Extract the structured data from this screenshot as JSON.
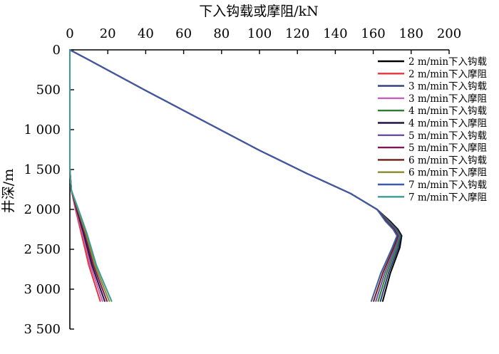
{
  "chart_data": {
    "type": "line",
    "title": "",
    "xlabel": "下入钩载或摩阻/kN",
    "ylabel": "井深/m",
    "x_axis_position": "top",
    "y_axis_inverted": true,
    "xlim": [
      0,
      200
    ],
    "ylim": [
      0,
      3500
    ],
    "x_ticks": [
      0,
      20,
      40,
      60,
      80,
      100,
      120,
      140,
      160,
      180,
      200
    ],
    "y_ticks": [
      0,
      500,
      1000,
      1500,
      2000,
      2500,
      3000,
      3500
    ],
    "x_tick_labels": [
      "0",
      "20",
      "40",
      "60",
      "80",
      "100",
      "120",
      "140",
      "160",
      "180",
      "200"
    ],
    "y_tick_labels": [
      "0",
      "500",
      "1 000",
      "1 500",
      "2 000",
      "2 500",
      "3 000",
      "3 500"
    ],
    "grid": false,
    "legend_position": "right",
    "series": [
      {
        "name": "2 m/min下入钩载",
        "color": "#000000",
        "x": [
          0,
          8,
          40,
          80,
          100,
          125,
          148,
          162,
          169,
          173,
          175,
          174,
          169,
          165
        ],
        "y": [
          0,
          100,
          510,
          1010,
          1260,
          1550,
          1800,
          2000,
          2150,
          2250,
          2330,
          2480,
          2800,
          3150
        ]
      },
      {
        "name": "2 m/min下入摩阻",
        "color": "#e8333a",
        "x": [
          0,
          0,
          0.8,
          3,
          6,
          10,
          16
        ],
        "y": [
          0,
          1500,
          1760,
          2000,
          2300,
          2700,
          3150
        ]
      },
      {
        "name": "3 m/min下入钩载",
        "color": "#2b3a78",
        "x": [
          0,
          8,
          40,
          80,
          100,
          125,
          148,
          162,
          168.5,
          172.5,
          174.5,
          173.2,
          168,
          163.8
        ],
        "y": [
          0,
          100,
          510,
          1010,
          1260,
          1550,
          1800,
          2000,
          2150,
          2250,
          2330,
          2480,
          2800,
          3150
        ]
      },
      {
        "name": "3 m/min下入摩阻",
        "color": "#c45fb3",
        "x": [
          0,
          0,
          0.8,
          3.3,
          6.6,
          10.8,
          17.2
        ],
        "y": [
          0,
          1500,
          1760,
          2000,
          2300,
          2700,
          3150
        ]
      },
      {
        "name": "4 m/min下入钩载",
        "color": "#2e7d32",
        "x": [
          0,
          8,
          40,
          80,
          100,
          125,
          148,
          162,
          168,
          172,
          174,
          172.4,
          167,
          162.6
        ],
        "y": [
          0,
          100,
          510,
          1010,
          1260,
          1550,
          1800,
          2000,
          2150,
          2250,
          2330,
          2480,
          2800,
          3150
        ]
      },
      {
        "name": "4 m/min下入摩阻",
        "color": "#1f1440",
        "x": [
          0,
          0,
          0.8,
          3.6,
          7.2,
          11.6,
          18.4
        ],
        "y": [
          0,
          1500,
          1760,
          2000,
          2300,
          2700,
          3150
        ]
      },
      {
        "name": "5 m/min下入钩载",
        "color": "#6a4fa8",
        "x": [
          0,
          8,
          40,
          80,
          100,
          125,
          148,
          162,
          167.5,
          171.5,
          173.5,
          171.6,
          166,
          161.4
        ],
        "y": [
          0,
          100,
          510,
          1010,
          1260,
          1550,
          1800,
          2000,
          2150,
          2250,
          2330,
          2480,
          2800,
          3150
        ]
      },
      {
        "name": "5 m/min下入摩阻",
        "color": "#7a1650",
        "x": [
          0,
          0,
          0.8,
          3.9,
          7.8,
          12.4,
          19.6
        ],
        "y": [
          0,
          1500,
          1760,
          2000,
          2300,
          2700,
          3150
        ]
      },
      {
        "name": "6 m/min下入钩载",
        "color": "#6b1f14",
        "x": [
          0,
          8,
          40,
          80,
          100,
          125,
          148,
          162,
          167,
          171,
          173,
          170.8,
          165,
          160.2
        ],
        "y": [
          0,
          100,
          510,
          1010,
          1260,
          1550,
          1800,
          2000,
          2150,
          2250,
          2330,
          2480,
          2800,
          3150
        ]
      },
      {
        "name": "6 m/min下入摩阻",
        "color": "#8a8a2a",
        "x": [
          0,
          0,
          0.8,
          4.2,
          8.4,
          13.2,
          20.8
        ],
        "y": [
          0,
          1500,
          1760,
          2000,
          2300,
          2700,
          3150
        ]
      },
      {
        "name": "7 m/min下入钩载",
        "color": "#3d5aa8",
        "x": [
          0,
          8,
          40,
          80,
          100,
          125,
          148,
          162,
          166.5,
          170.5,
          172.5,
          170,
          164,
          159
        ],
        "y": [
          0,
          100,
          510,
          1010,
          1260,
          1550,
          1800,
          2000,
          2150,
          2250,
          2330,
          2480,
          2800,
          3150
        ]
      },
      {
        "name": "7 m/min下入摩阻",
        "color": "#3a9a96",
        "x": [
          0,
          0,
          0.8,
          4.5,
          9,
          14,
          22
        ],
        "y": [
          0,
          1500,
          1760,
          2000,
          2300,
          2700,
          3150
        ]
      }
    ]
  }
}
